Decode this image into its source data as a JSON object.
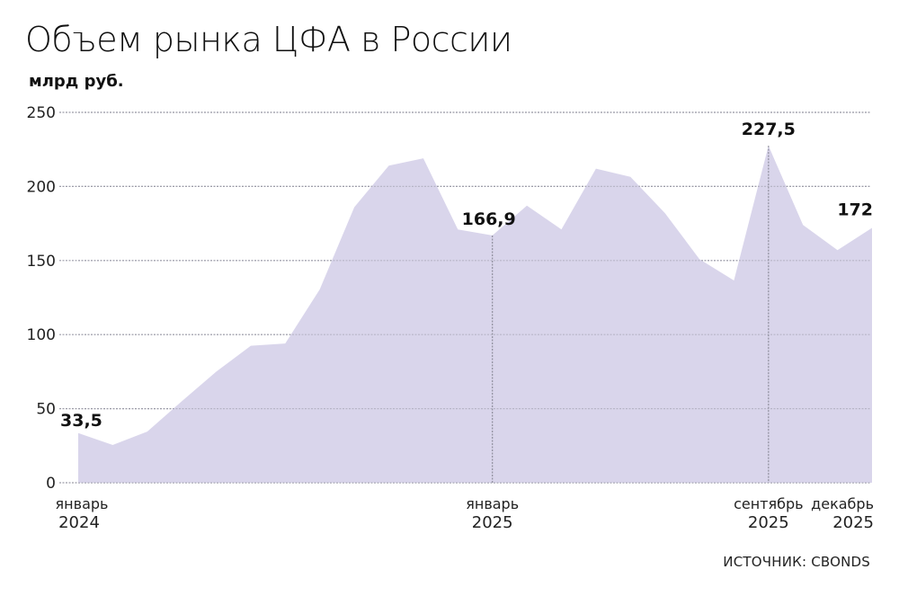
{
  "title": "Объем рынка ЦФА в России",
  "unit_label": "млрд руб.",
  "source": "ИСТОЧНИК: CBONDS",
  "colors": {
    "area_fill": "#d9d5eb",
    "grid": "#9c9ca8",
    "marker_line": "#8e8e9c",
    "text": "#111111"
  },
  "chart_data": {
    "type": "area",
    "title": "Объем рынка ЦФА в России",
    "ylabel": "млрд руб.",
    "xlabel": "",
    "ylim": [
      0,
      250
    ],
    "yticks": [
      0,
      50,
      100,
      150,
      200,
      250
    ],
    "grid": true,
    "legend": null,
    "x": [
      "2024-01",
      "2024-02",
      "2024-03",
      "2024-04",
      "2024-05",
      "2024-06",
      "2024-07",
      "2024-08",
      "2024-09",
      "2024-10",
      "2024-11",
      "2024-12",
      "2025-01",
      "2025-02",
      "2025-03",
      "2025-04",
      "2025-05",
      "2025-06",
      "2025-07",
      "2025-08",
      "2025-09",
      "2025-10",
      "2025-11",
      "2025-12"
    ],
    "values": [
      33.5,
      25.5,
      34.5,
      55,
      75,
      92.5,
      94,
      130.5,
      186,
      214,
      219,
      171,
      166.9,
      187,
      171,
      212,
      206.5,
      182,
      151,
      136.5,
      227.5,
      174,
      157,
      172
    ],
    "x_tick_labels": [
      {
        "index": 0,
        "month": "январь",
        "year": "2024"
      },
      {
        "index": 12,
        "month": "январь",
        "year": "2025"
      },
      {
        "index": 20,
        "month": "сентябрь",
        "year": "2025"
      },
      {
        "index": 23,
        "month": "декабрь",
        "year": "2025"
      }
    ],
    "annotations": [
      {
        "index": 0,
        "text": "33,5"
      },
      {
        "index": 12,
        "text": "166,9"
      },
      {
        "index": 20,
        "text": "227,5"
      },
      {
        "index": 23,
        "text": "172"
      }
    ],
    "vertical_markers": [
      12,
      20
    ]
  }
}
